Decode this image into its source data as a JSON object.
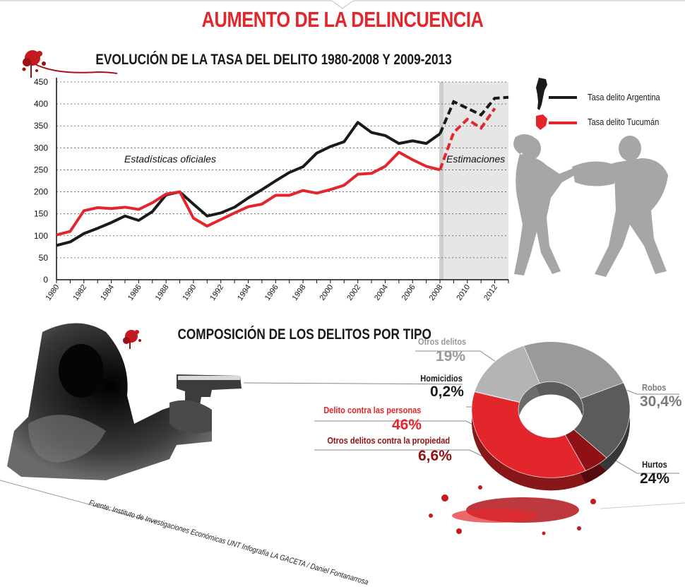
{
  "header": {
    "title": "AUMENTO DE LA DELINCUENCIA"
  },
  "section1": {
    "title": "EVOLUCIÓN DE LA TASA DEL DELITO 1980-2008 Y 2009-2013"
  },
  "section2": {
    "title": "COMPOSICIÓN DE LOS DELITOS POR TIPO"
  },
  "colors": {
    "accent": "#e3262b",
    "dark": "#1a1a1a",
    "gray": "#9a9a9a",
    "darkred": "#8f1116",
    "shade": "#e6e6e6"
  },
  "chart_data": [
    {
      "type": "line",
      "title": "EVOLUCIÓN DE LA TASA DEL DELITO 1980-2008 Y 2009-2013",
      "xlim": [
        1980,
        2013
      ],
      "ylim": [
        0,
        450
      ],
      "y_ticks": [
        0,
        50,
        100,
        150,
        200,
        250,
        300,
        350,
        400,
        450
      ],
      "x_ticks": [
        "1980",
        "1982",
        "1984",
        "1986",
        "1988",
        "1990",
        "1992",
        "1994",
        "1996",
        "1998",
        "2000",
        "2002",
        "2004",
        "2006",
        "2008",
        "2010",
        "2012"
      ],
      "grid": "horizontal dotted",
      "annotations": {
        "official": "Estadísticas oficiales",
        "estimates": "Estimaciones"
      },
      "estimate_start": 2008,
      "series": [
        {
          "name": "Tasa delito Argentina",
          "color": "#1a1a1a",
          "x": [
            1980,
            1981,
            1982,
            1983,
            1984,
            1985,
            1986,
            1987,
            1988,
            1989,
            1990,
            1991,
            1992,
            1993,
            1994,
            1995,
            1996,
            1997,
            1998,
            1999,
            2000,
            2001,
            2002,
            2003,
            2004,
            2005,
            2006,
            2007,
            2008
          ],
          "values": [
            78,
            86,
            105,
            117,
            130,
            145,
            135,
            155,
            193,
            200,
            172,
            145,
            152,
            165,
            186,
            205,
            225,
            244,
            257,
            288,
            303,
            314,
            358,
            335,
            328,
            310,
            316,
            310,
            332
          ],
          "estimate_x": [
            2008,
            2009,
            2010,
            2011,
            2012,
            2013
          ],
          "estimate_values": [
            332,
            405,
            390,
            375,
            413,
            415
          ]
        },
        {
          "name": "Tasa delito Tucumán",
          "color": "#e3262b",
          "x": [
            1980,
            1981,
            1982,
            1983,
            1984,
            1985,
            1986,
            1987,
            1988,
            1989,
            1990,
            1991,
            1992,
            1993,
            1994,
            1995,
            1996,
            1997,
            1998,
            1999,
            2000,
            2001,
            2002,
            2003,
            2004,
            2005,
            2006,
            2007,
            2008
          ],
          "values": [
            102,
            110,
            157,
            164,
            162,
            165,
            160,
            175,
            195,
            200,
            140,
            122,
            137,
            152,
            166,
            172,
            192,
            192,
            203,
            197,
            205,
            215,
            240,
            242,
            258,
            290,
            273,
            258,
            250
          ],
          "estimate_x": [
            2008,
            2009,
            2010,
            2011,
            2012
          ],
          "estimate_values": [
            250,
            335,
            365,
            345,
            390
          ]
        }
      ]
    },
    {
      "type": "pie",
      "title": "COMPOSICIÓN DE LOS DELITOS POR TIPO",
      "style": "3D donut",
      "slices": [
        {
          "label": "Robos",
          "value": 30.4,
          "display": "30,4%",
          "color": "#9a9a9a"
        },
        {
          "label": "Hurtos",
          "value": 24,
          "display": "24%",
          "color": "#5b5b5b"
        },
        {
          "label": "Otros delitos contra la propiedad",
          "value": 6.6,
          "display": "6,6%",
          "color": "#8f1116"
        },
        {
          "label": "Delito contra las personas",
          "value": 46,
          "display": "46%",
          "color": "#e3262b"
        },
        {
          "label": "Homicidios",
          "value": 0.2,
          "display": "0,2%",
          "color": "#1a1a1a"
        },
        {
          "label": "Otros delitos",
          "value": 19,
          "display": "19%",
          "color": "#b4b4b4"
        }
      ]
    }
  ],
  "source": "Fuente: Instituto de Investigaciones Económicas UNT    Infografía LA GACETA / Daniel Fontanarrosa"
}
